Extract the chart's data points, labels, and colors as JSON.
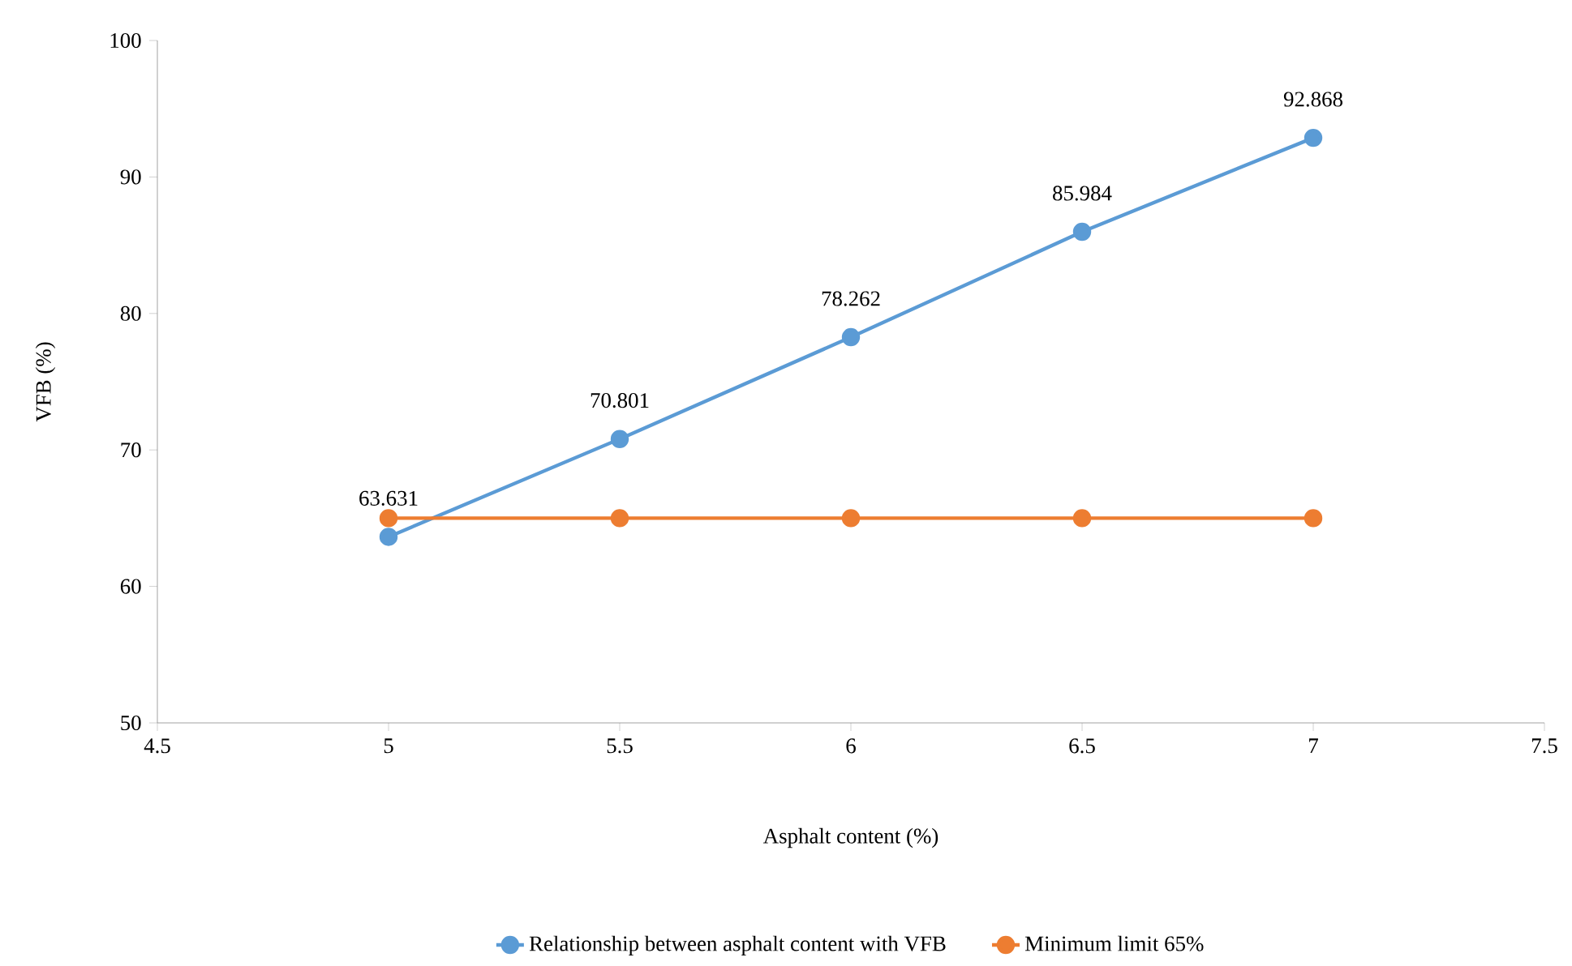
{
  "chart_data": {
    "type": "line",
    "xlabel": "Asphalt content (%)",
    "ylabel": "VFB (%)",
    "x": [
      5,
      5.5,
      6,
      6.5,
      7
    ],
    "series": [
      {
        "name": "Relationship between asphalt content with VFB",
        "color": "#5b9bd5",
        "values": [
          63.631,
          70.801,
          78.262,
          85.984,
          92.868
        ],
        "value_labels": [
          "63.631",
          "70.801",
          "78.262",
          "85.984",
          "92.868"
        ]
      },
      {
        "name": "Minimum limit 65%",
        "color": "#ed7d31",
        "values": [
          65,
          65,
          65,
          65,
          65
        ]
      }
    ],
    "xlim": [
      4.5,
      7.5
    ],
    "xticks": [
      4.5,
      5,
      5.5,
      6,
      6.5,
      7,
      7.5
    ],
    "ylim": [
      50,
      100
    ],
    "yticks": [
      50,
      60,
      70,
      80,
      90,
      100
    ],
    "grid": false,
    "legend": "bottom",
    "marker": "circle",
    "line_style": "solid"
  }
}
